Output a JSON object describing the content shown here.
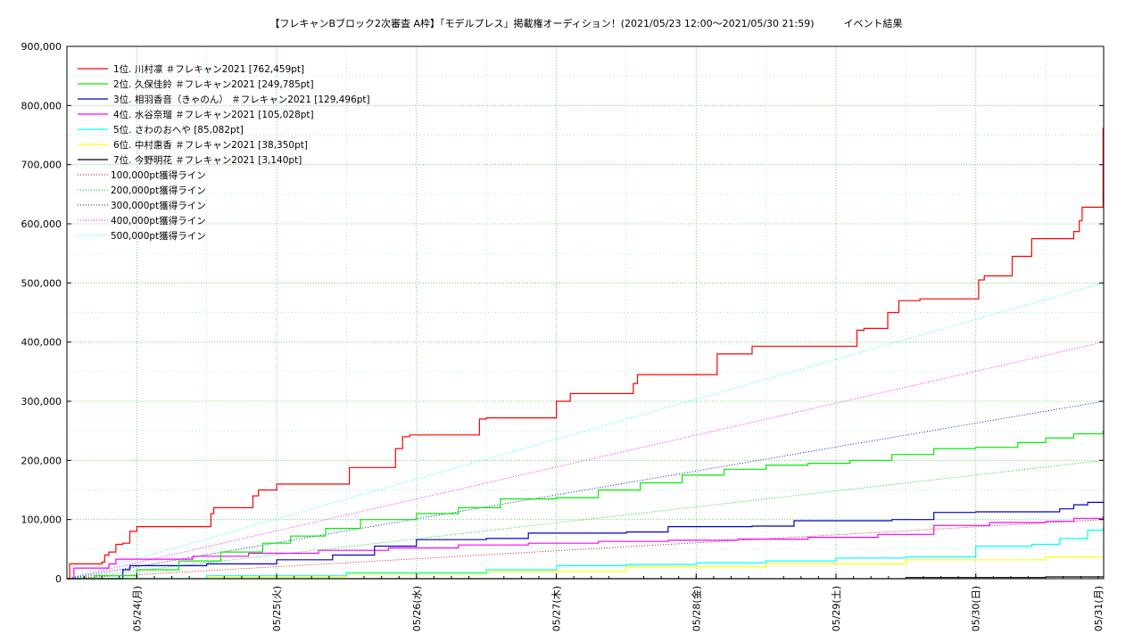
{
  "chart_data": {
    "type": "line",
    "title": "【フレキャンBブロック2次審査 A枠】「モデルプレス」掲載権オーディション！(2021/05/23 12:00～2021/05/30 21:59)　　　イベント結果",
    "xlabel": "",
    "ylabel": "",
    "ylim": [
      0,
      900000
    ],
    "x_range_days": [
      0,
      7.414
    ],
    "yticks": [
      0,
      100000,
      200000,
      300000,
      400000,
      500000,
      600000,
      700000,
      800000,
      900000
    ],
    "ytick_labels": [
      "0",
      "100,000",
      "200,000",
      "300,000",
      "400,000",
      "500,000",
      "600,000",
      "700,000",
      "800,000",
      "900,000"
    ],
    "xticks_days": [
      0.5,
      1.5,
      2.5,
      3.5,
      4.5,
      5.5,
      6.5,
      7.5
    ],
    "xtick_labels": [
      "05/24(月)",
      "05/25(火)",
      "05/26(水)",
      "05/27(木)",
      "05/28(金)",
      "05/29(土)",
      "05/30(日)",
      "05/31(月)"
    ],
    "grid": true,
    "legend_position": "top-left",
    "series": [
      {
        "name": "1位. 川村凛 ＃フレキャン2021 [762,459pt]",
        "color": "#ff0000",
        "x": [
          0,
          0.02,
          0.25,
          0.27,
          0.3,
          0.35,
          0.4,
          0.45,
          0.5,
          1.0,
          1.03,
          1.05,
          1.3,
          1.33,
          1.37,
          1.5,
          1.98,
          2.02,
          2.3,
          2.35,
          2.4,
          2.45,
          2.9,
          2.95,
          3.0,
          3.15,
          3.5,
          3.6,
          3.65,
          3.7,
          4.0,
          4.05,
          4.08,
          4.12,
          4.2,
          4.6,
          4.65,
          4.9,
          4.95,
          5.0,
          5.05,
          5.6,
          5.65,
          5.7,
          5.83,
          5.87,
          5.95,
          6.1,
          6.5,
          6.52,
          6.56,
          6.72,
          6.76,
          6.8,
          6.9,
          7.2,
          7.22,
          7.24,
          7.26,
          7.3,
          7.41
        ],
        "y": [
          0,
          25000,
          28000,
          40000,
          45000,
          58000,
          60000,
          80000,
          88000,
          88000,
          110000,
          120000,
          120000,
          140000,
          150000,
          160000,
          160000,
          188000,
          188000,
          220000,
          240000,
          243000,
          243000,
          270000,
          272000,
          272000,
          300000,
          313000,
          313000,
          313000,
          313000,
          330000,
          345000,
          345000,
          345000,
          345000,
          380000,
          393000,
          393000,
          393000,
          393000,
          393000,
          420000,
          423000,
          423000,
          450000,
          470000,
          473000,
          473000,
          505000,
          512000,
          512000,
          545000,
          545000,
          575000,
          587000,
          587000,
          605000,
          628000,
          628000,
          762459
        ]
      },
      {
        "name": "2位. 久保佳鈴 ＃フレキャン2021 [249,785pt]",
        "color": "#00ee00",
        "x": [
          0,
          0.2,
          0.5,
          0.8,
          1.1,
          1.4,
          1.6,
          1.85,
          2.1,
          2.5,
          2.8,
          3.1,
          3.5,
          3.8,
          4.1,
          4.4,
          4.7,
          5.0,
          5.3,
          5.6,
          5.9,
          6.2,
          6.5,
          6.8,
          7.0,
          7.2,
          7.41
        ],
        "y": [
          0,
          5000,
          15000,
          30000,
          45000,
          60000,
          72000,
          85000,
          100000,
          110000,
          120000,
          135000,
          137000,
          150000,
          162000,
          175000,
          185000,
          192000,
          195000,
          200000,
          210000,
          220000,
          222000,
          230000,
          238000,
          245000,
          249785
        ]
      },
      {
        "name": "3位. 相羽香音（きゃのん） ＃フレキャン2021 [129,496pt]",
        "color": "#0000cc",
        "x": [
          0,
          0.3,
          0.4,
          0.45,
          1.0,
          1.5,
          1.9,
          2.2,
          2.5,
          3.0,
          3.3,
          4.0,
          4.3,
          4.9,
          5.2,
          5.9,
          6.2,
          6.5,
          6.9,
          7.1,
          7.2,
          7.3,
          7.41
        ],
        "y": [
          0,
          0,
          15000,
          22000,
          25000,
          32000,
          40000,
          55000,
          66000,
          68000,
          77000,
          79000,
          88000,
          89000,
          98000,
          100000,
          112000,
          113000,
          113000,
          118000,
          125000,
          129000,
          129496
        ]
      },
      {
        "name": "4位. 水谷奈瑠 ＃フレキャン2021 [105,028pt]",
        "color": "#ff00ff",
        "x": [
          0,
          0.05,
          0.3,
          0.35,
          0.9,
          1.3,
          1.8,
          2.3,
          2.8,
          3.3,
          3.8,
          4.3,
          4.8,
          5.3,
          5.8,
          6.2,
          6.6,
          7.0,
          7.2,
          7.41
        ],
        "y": [
          0,
          18000,
          25000,
          33000,
          38000,
          43000,
          48000,
          52000,
          57000,
          60000,
          63000,
          65000,
          67000,
          70000,
          75000,
          90000,
          95000,
          97000,
          102000,
          105028
        ]
      },
      {
        "name": "5位. さわのおへや [85,082pt]",
        "color": "#00ffff",
        "x": [
          0,
          1.0,
          2.0,
          3.0,
          3.5,
          4.0,
          4.5,
          5.0,
          5.5,
          6.0,
          6.5,
          6.9,
          7.1,
          7.3,
          7.41
        ],
        "y": [
          0,
          5000,
          10000,
          15000,
          22000,
          24000,
          27000,
          30000,
          35000,
          37000,
          55000,
          58000,
          68000,
          82000,
          85082
        ]
      },
      {
        "name": "6位. 中村惠香 ＃フレキャン2021 [38,350pt]",
        "color": "#ffff00",
        "x": [
          0,
          1.0,
          2.0,
          3.0,
          4.0,
          5.0,
          6.0,
          7.0,
          7.41
        ],
        "y": [
          0,
          2000,
          8000,
          12000,
          20000,
          25000,
          32000,
          37000,
          38350
        ]
      },
      {
        "name": "7位. 今野明花 ＃フレキャン2021 [3,140pt]",
        "color": "#000000",
        "x": [
          0,
          5.5,
          6.0,
          7.0,
          7.41
        ],
        "y": [
          0,
          0,
          2000,
          3000,
          3140
        ]
      }
    ],
    "target_lines": [
      {
        "name": "100,000pt獲得ライン",
        "color": "#cc0000",
        "y_end": 100000
      },
      {
        "name": "200,000pt獲得ライン",
        "color": "#00cc00",
        "y_end": 200000
      },
      {
        "name": "300,000pt獲得ライン",
        "color": "#0000cc",
        "y_end": 300000
      },
      {
        "name": "400,000pt獲得ライン",
        "color": "#ff00ff",
        "y_end": 400000
      },
      {
        "name": "500,000pt獲得ライン",
        "color": "#00ffff",
        "y_end": 500000
      }
    ]
  }
}
